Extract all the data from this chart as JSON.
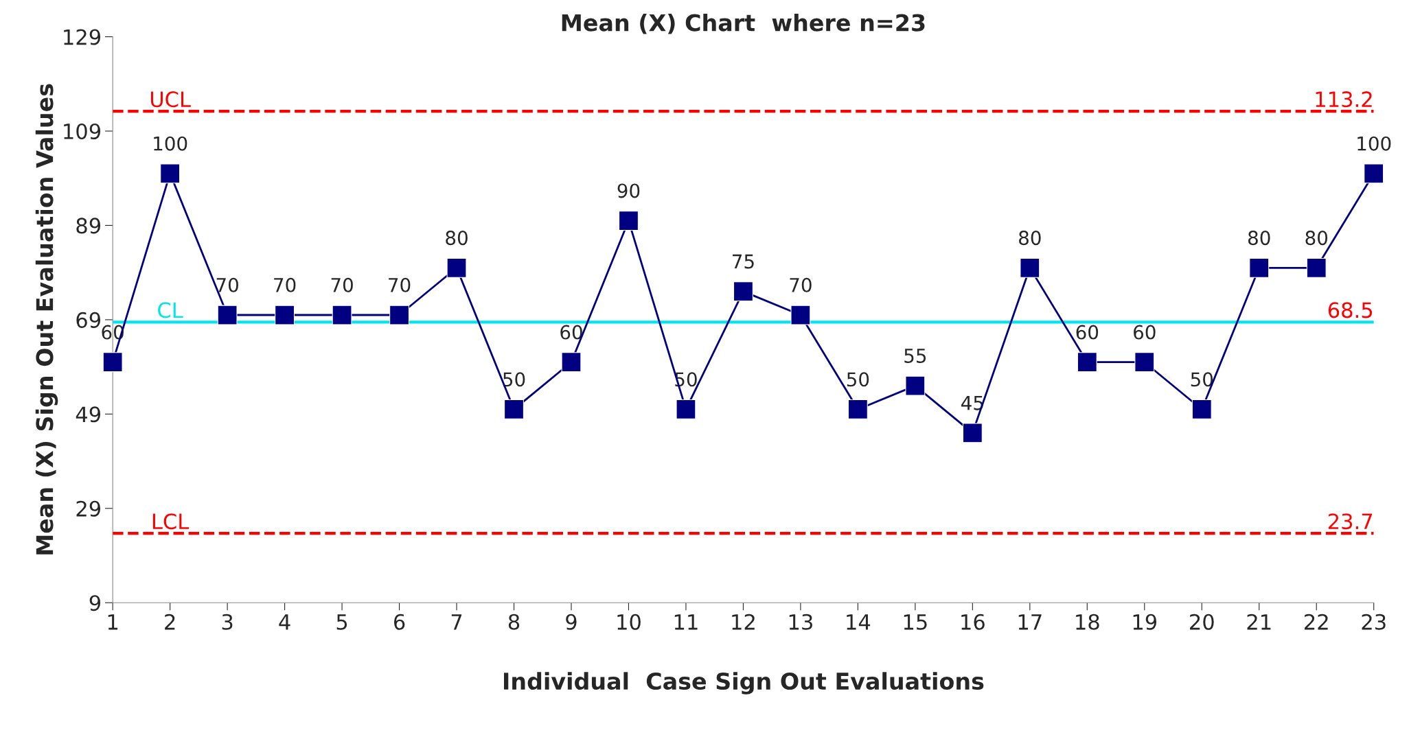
{
  "chart_data": {
    "type": "line",
    "title": "Mean (X) Chart  where n=23",
    "xlabel": "Individual  Case Sign Out Evaluations",
    "ylabel": "Mean (X) Sign Out Evaluation Values",
    "categories": [
      "1",
      "2",
      "3",
      "4",
      "5",
      "6",
      "7",
      "8",
      "9",
      "10",
      "11",
      "12",
      "13",
      "14",
      "15",
      "16",
      "17",
      "18",
      "19",
      "20",
      "21",
      "22",
      "23"
    ],
    "series": [
      {
        "color": "#000080",
        "values": [
          60,
          100,
          70,
          70,
          70,
          70,
          80,
          50,
          60,
          90,
          50,
          75,
          70,
          50,
          55,
          45,
          80,
          60,
          60,
          50,
          80,
          80,
          100
        ]
      }
    ],
    "ylim": [
      9,
      129
    ],
    "yticks": [
      9,
      29,
      49,
      69,
      89,
      109,
      129
    ],
    "ref_lines": [
      {
        "axis": "y",
        "value": 113.2,
        "label": "UCL",
        "color": "#ff0000",
        "line_style": "dashed"
      },
      {
        "axis": "y",
        "value": 68.5,
        "label": "CL",
        "color": "#00e5ee",
        "line_style": "solid"
      },
      {
        "axis": "y",
        "value": 23.7,
        "label": "LCL",
        "color": "#ff0000",
        "line_style": "dashed"
      }
    ],
    "annotations": [
      {
        "text": "113.2",
        "x": "23",
        "y": 113.2
      },
      {
        "text": "68.5",
        "x": "23",
        "y": 68.5
      },
      {
        "text": "23.7",
        "x": "23",
        "y": 23.7
      }
    ],
    "marker": "square",
    "line_style": "solid",
    "data_labels": true,
    "grid": false
  }
}
